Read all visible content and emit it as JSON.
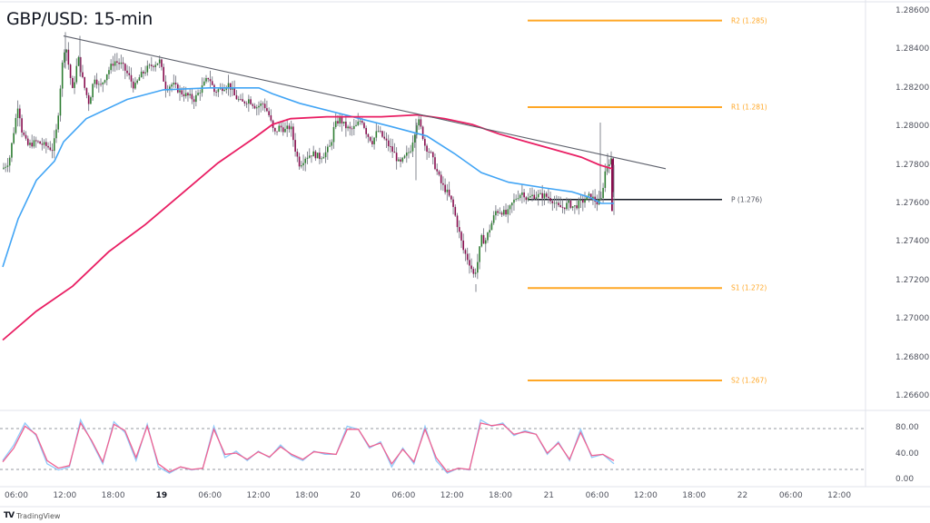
{
  "header": {
    "title": "GBP/USD: 15-min"
  },
  "branding": {
    "logo_mark": "TV",
    "logo_text": "TradingView"
  },
  "colors": {
    "bull": "#2e7d32",
    "bear": "#880e4f",
    "wick": "#787b86",
    "ma_fast": "#42a5f5",
    "ma_slow": "#e91e63",
    "trendline": "#5d606b",
    "pivot": "#131722",
    "sr": "#ffa726",
    "stoch_k": "#90caf9",
    "stoch_d": "#f06292",
    "grid_border": "#e0e3eb"
  },
  "price_axis": {
    "ticks": [
      "1.28600",
      "1.28400",
      "1.28200",
      "1.28000",
      "1.27800",
      "1.27600",
      "1.27400",
      "1.27200",
      "1.27000",
      "1.26800",
      "1.26600"
    ]
  },
  "stoch_axis": {
    "ticks": [
      "80.00",
      "40.00",
      "0.00"
    ]
  },
  "time_axis": {
    "ticks": [
      {
        "label": "06:00",
        "bold": false
      },
      {
        "label": "12:00",
        "bold": false
      },
      {
        "label": "18:00",
        "bold": false
      },
      {
        "label": "19",
        "bold": true
      },
      {
        "label": "06:00",
        "bold": false
      },
      {
        "label": "12:00",
        "bold": false
      },
      {
        "label": "18:00",
        "bold": false
      },
      {
        "label": "20",
        "bold": false
      },
      {
        "label": "06:00",
        "bold": false
      },
      {
        "label": "12:00",
        "bold": false
      },
      {
        "label": "18:00",
        "bold": false
      },
      {
        "label": "21",
        "bold": false
      },
      {
        "label": "06:00",
        "bold": false
      },
      {
        "label": "12:00",
        "bold": false
      },
      {
        "label": "18:00",
        "bold": false
      },
      {
        "label": "22",
        "bold": false
      },
      {
        "label": "06:00",
        "bold": false
      },
      {
        "label": "12:00",
        "bold": false
      }
    ]
  },
  "pivots": [
    {
      "label": "R2 (1.285)",
      "price": 1.2855,
      "type": "sr"
    },
    {
      "label": "R1 (1.281)",
      "price": 1.281,
      "type": "sr"
    },
    {
      "label": "P (1.276)",
      "price": 1.2762,
      "type": "pivot"
    },
    {
      "label": "S1 (1.272)",
      "price": 1.2716,
      "type": "sr"
    },
    {
      "label": "S2 (1.267)",
      "price": 1.2668,
      "type": "sr"
    }
  ],
  "chart_data": {
    "type": "line",
    "title": "GBP/USD: 15-min",
    "xlabel": "",
    "ylabel": "",
    "ylim": [
      1.2656,
      1.287
    ],
    "grid": false,
    "legend": "none",
    "x": [
      "18 06:00",
      "18 12:00",
      "18 18:00",
      "19 00:00",
      "19 06:00",
      "19 12:00",
      "19 18:00",
      "20 00:00",
      "20 06:00",
      "20 12:00",
      "20 18:00",
      "21 00:00",
      "21 06:00"
    ],
    "series": [
      {
        "name": "GBP/USD close (approx)",
        "values": [
          1.2784,
          1.284,
          1.2832,
          1.2826,
          1.282,
          1.2812,
          1.2786,
          1.2796,
          1.28,
          1.2738,
          1.2762,
          1.2764,
          1.2758
        ]
      },
      {
        "name": "Fast MA (blue)",
        "values": [
          1.276,
          1.28,
          1.2812,
          1.2818,
          1.2821,
          1.2818,
          1.281,
          1.2802,
          1.2794,
          1.278,
          1.277,
          1.2764,
          1.276
        ]
      },
      {
        "name": "Slow MA (pink)",
        "values": [
          1.269,
          1.2718,
          1.2746,
          1.2772,
          1.2792,
          1.2803,
          1.2805,
          1.2805,
          1.2805,
          1.28,
          1.2793,
          1.2786,
          1.2778
        ]
      }
    ],
    "trendline": {
      "from": {
        "x": "18 12:00",
        "price": 1.2847
      },
      "to": {
        "x": "21 12:00",
        "price": 1.2778
      }
    },
    "pivot_levels": {
      "R2": 1.285,
      "R1": 1.281,
      "P": 1.276,
      "S1": 1.272,
      "S2": 1.267
    },
    "stochastic": {
      "ylim": [
        0,
        100
      ],
      "levels": [
        80,
        20
      ],
      "ticks": [
        "80.00",
        "40.00",
        "0.00"
      ],
      "k_values": [
        30,
        55,
        90,
        70,
        25,
        15,
        20,
        95,
        60,
        25,
        92,
        75,
        30,
        88,
        20,
        10,
        20,
        15,
        18,
        85,
        35,
        45,
        30,
        45,
        35,
        55,
        38,
        30,
        45,
        40,
        40,
        85,
        80,
        50,
        60,
        20,
        50,
        25,
        85,
        30,
        10,
        18,
        15,
        95,
        85,
        90,
        70,
        78,
        72,
        40,
        60,
        30,
        80,
        35,
        40,
        25
      ],
      "d_values": [
        28,
        50,
        85,
        72,
        30,
        18,
        22,
        90,
        62,
        28,
        88,
        78,
        35,
        85,
        25,
        12,
        20,
        16,
        18,
        80,
        40,
        42,
        32,
        44,
        36,
        52,
        40,
        32,
        44,
        42,
        40,
        80,
        80,
        52,
        58,
        25,
        48,
        28,
        80,
        35,
        12,
        18,
        16,
        90,
        86,
        88,
        72,
        76,
        72,
        42,
        58,
        32,
        75,
        38,
        40,
        30
      ]
    }
  }
}
